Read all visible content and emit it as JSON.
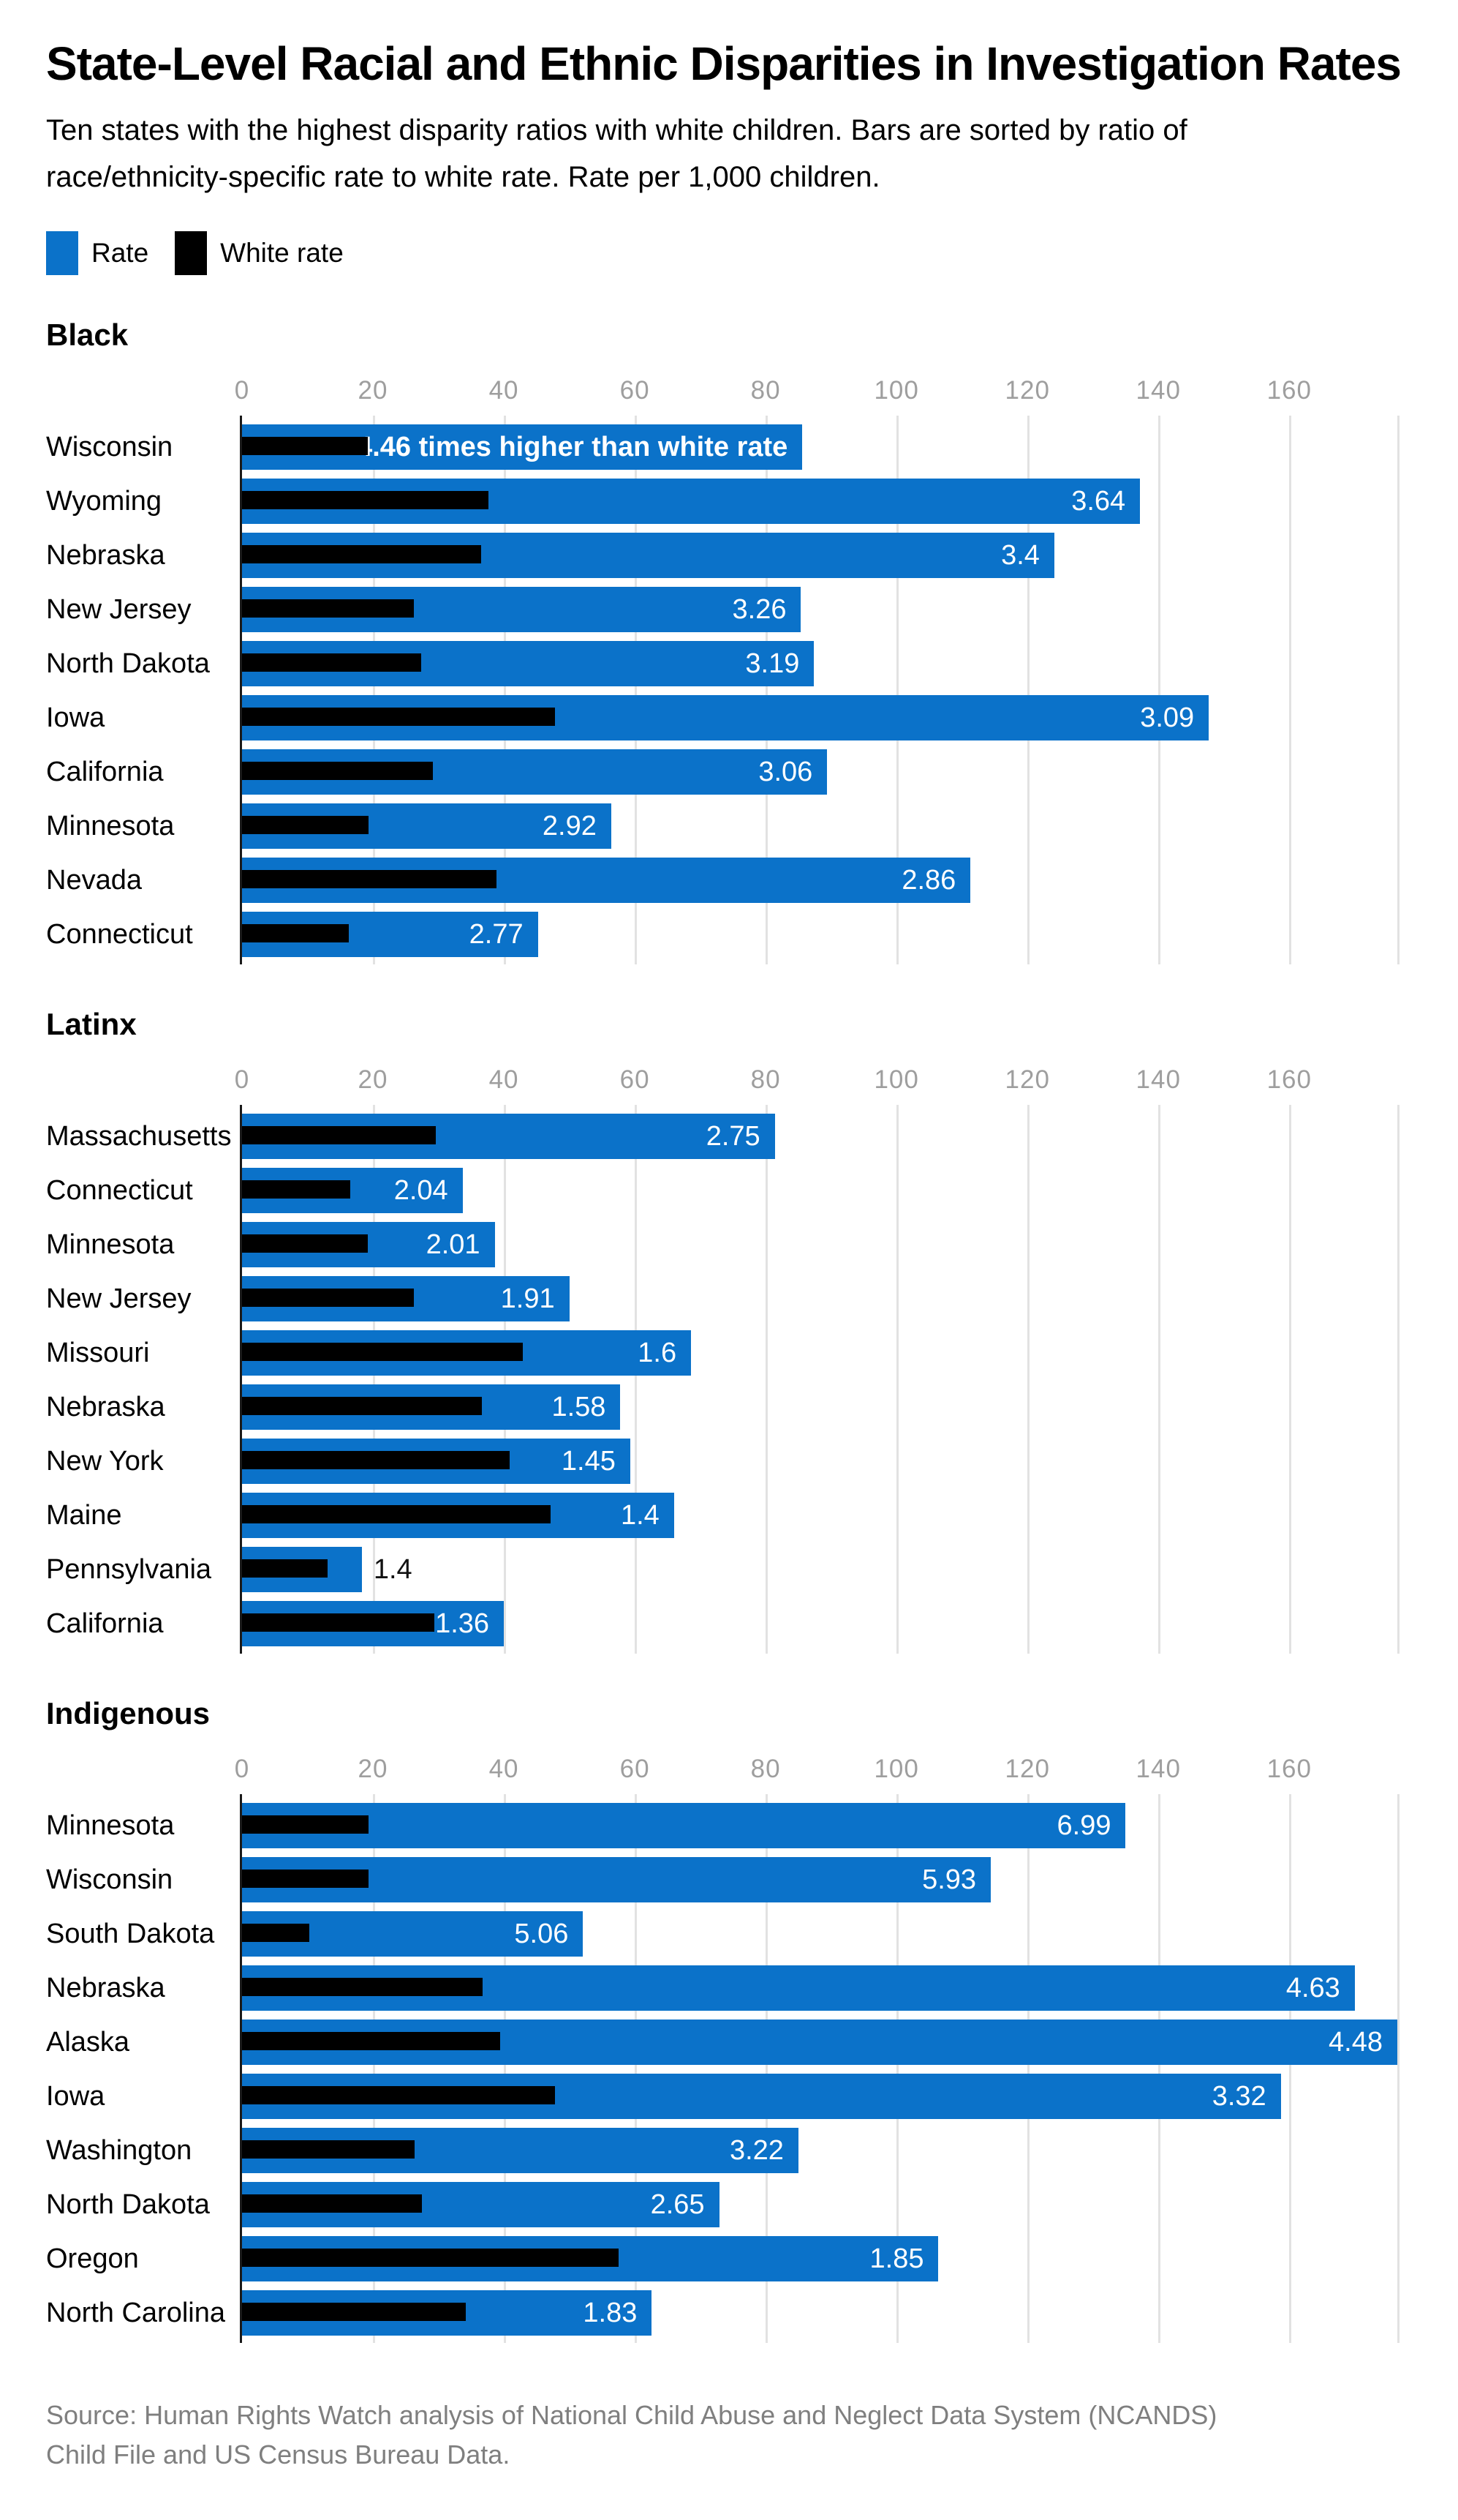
{
  "title": "State-Level Racial and Ethnic Disparities in Investigation Rates",
  "subtitle": "Ten states with the highest disparity ratios with white children. Bars are sorted by ratio of race/ethnicity-specific rate to white rate. Rate per 1,000 children.",
  "legend": {
    "items": [
      {
        "label": "Rate",
        "color": "#0b72c9"
      },
      {
        "label": "White rate",
        "color": "#000000"
      }
    ]
  },
  "colors": {
    "bar_blue": "#0b72c9",
    "bar_black": "#000000",
    "tick_text": "#9e9e9e",
    "gridline": "#e2e2e2",
    "axis_line": "#1a1a1a",
    "value_label_inside": "#ffffff",
    "value_label_outside": "#111111",
    "source_text": "#7f7f7f"
  },
  "axis": {
    "xticks": [
      0,
      20,
      40,
      60,
      80,
      100,
      120,
      140,
      160
    ],
    "xmax": 176.5
  },
  "chart_data": [
    {
      "type": "bar",
      "orientation": "horizontal",
      "group": "Black",
      "categories": [
        "Wisconsin",
        "Wyoming",
        "Nebraska",
        "New Jersey",
        "North Dakota",
        "Iowa",
        "California",
        "Minnesota",
        "Nevada",
        "Connecticut"
      ],
      "series": [
        {
          "name": "Rate",
          "values": [
            85.6,
            137.2,
            124.1,
            85.4,
            87.4,
            147.7,
            89.4,
            56.4,
            111.3,
            45.2
          ]
        },
        {
          "name": "White rate",
          "values": [
            19.2,
            37.7,
            36.5,
            26.2,
            27.4,
            47.8,
            29.2,
            19.3,
            38.9,
            16.3
          ]
        }
      ],
      "bar_labels": [
        "4.46 times higher than white rate",
        "3.64",
        "3.4",
        "3.26",
        "3.19",
        "3.09",
        "3.06",
        "2.92",
        "2.86",
        "2.77"
      ],
      "xlim": [
        0,
        176.5
      ],
      "xticks": [
        0,
        20,
        40,
        60,
        80,
        100,
        120,
        140,
        160
      ],
      "grid": true,
      "legend_position": "top"
    },
    {
      "type": "bar",
      "orientation": "horizontal",
      "group": "Latinx",
      "categories": [
        "Massachusetts",
        "Connecticut",
        "Minnesota",
        "New Jersey",
        "Missouri",
        "Nebraska",
        "New York",
        "Maine",
        "Pennsylvania",
        "California"
      ],
      "series": [
        {
          "name": "Rate",
          "values": [
            81.4,
            33.7,
            38.6,
            50.0,
            68.6,
            57.8,
            59.3,
            66.0,
            18.3,
            40.0
          ]
        },
        {
          "name": "White rate",
          "values": [
            29.6,
            16.5,
            19.2,
            26.2,
            42.9,
            36.6,
            40.9,
            47.1,
            13.1,
            29.4
          ]
        }
      ],
      "bar_labels": [
        "2.75",
        "2.04",
        "2.01",
        "1.91",
        "1.6",
        "1.58",
        "1.45",
        "1.4",
        "1.4",
        "1.36"
      ],
      "xlim": [
        0,
        176.5
      ],
      "xticks": [
        0,
        20,
        40,
        60,
        80,
        100,
        120,
        140,
        160
      ],
      "grid": true,
      "legend_position": "top"
    },
    {
      "type": "bar",
      "orientation": "horizontal",
      "group": "Indigenous",
      "categories": [
        "Minnesota",
        "Wisconsin",
        "South Dakota",
        "Nebraska",
        "Alaska",
        "Iowa",
        "Washington",
        "North Dakota",
        "Oregon",
        "North Carolina"
      ],
      "series": [
        {
          "name": "Rate",
          "values": [
            135.0,
            114.4,
            52.1,
            170.0,
            176.5,
            158.7,
            85.0,
            72.9,
            106.4,
            62.6
          ]
        },
        {
          "name": "White rate",
          "values": [
            19.3,
            19.3,
            10.3,
            36.7,
            39.4,
            47.8,
            26.4,
            27.5,
            57.5,
            34.2
          ]
        }
      ],
      "bar_labels": [
        "6.99",
        "5.93",
        "5.06",
        "4.63",
        "4.48",
        "3.32",
        "3.22",
        "2.65",
        "1.85",
        "1.83"
      ],
      "xlim": [
        0,
        176.5
      ],
      "xticks": [
        0,
        20,
        40,
        60,
        80,
        100,
        120,
        140,
        160
      ],
      "grid": true,
      "legend_position": "top"
    }
  ],
  "source": "Source: Human Rights Watch analysis of National Child Abuse and Neglect Data System (NCANDS) Child File and US Census Bureau Data."
}
